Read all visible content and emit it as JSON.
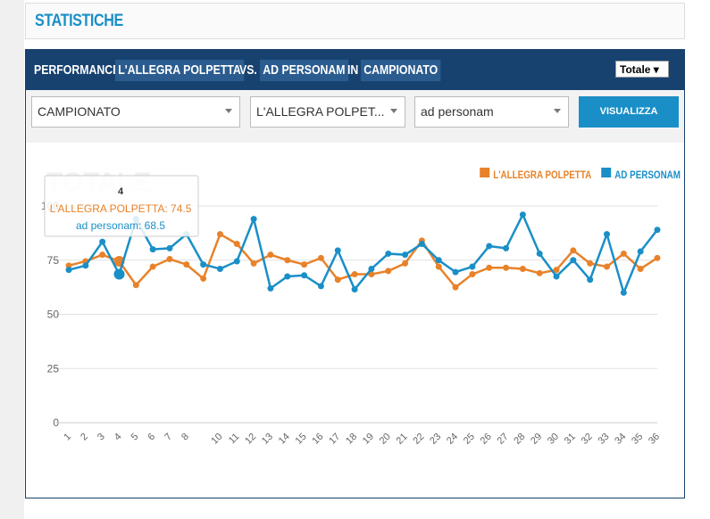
{
  "page": {
    "section_title": "STATISTICHE",
    "panel": {
      "title_parts": [
        "PERFORMANCE",
        "L'ALLEGRA POLPETTA",
        "VS.",
        "AD PERSONAM",
        "IN",
        "CAMPIONATO"
      ],
      "mode_select": "Totale"
    },
    "filters": {
      "competition": "CAMPIONATO",
      "team_a": "L'ALLEGRA POLPET...",
      "team_b": "ad personam",
      "button": "VISUALIZZA"
    }
  },
  "chart_data": {
    "type": "line",
    "watermark": "TOTALE",
    "categories": [
      "1",
      "2",
      "3",
      "4",
      "5",
      "6",
      "7",
      "8",
      null,
      "10",
      "11",
      "12",
      "13",
      "14",
      "15",
      "16",
      "17",
      "18",
      "19",
      "20",
      "21",
      "22",
      "23",
      "24",
      "25",
      "26",
      "27",
      "28",
      "29",
      "30",
      "31",
      "32",
      "33",
      "34",
      "35",
      "36"
    ],
    "series": [
      {
        "name": "L'ALLEGRA POLPETTA",
        "color": "#e8822a",
        "values": [
          72.5,
          74.5,
          77.5,
          74.5,
          63.5,
          72,
          75.5,
          73,
          66.5,
          87,
          82.5,
          73.5,
          77.5,
          75,
          73,
          76,
          66,
          68.5,
          68.5,
          70,
          73.5,
          84,
          72,
          62.5,
          68.5,
          71.5,
          71.5,
          71,
          69,
          70.5,
          79.5,
          73.5,
          72,
          78,
          71,
          76
        ]
      },
      {
        "name": "AD PERSONAM",
        "color": "#1a8fc7",
        "values": [
          70.5,
          72.5,
          83.5,
          68.5,
          94,
          80,
          80.5,
          87,
          73,
          71,
          74.5,
          94,
          62,
          67.5,
          68,
          63,
          79.5,
          61.5,
          71,
          78,
          77.5,
          82.5,
          75,
          69.5,
          72,
          81.5,
          80.5,
          96,
          78,
          67.5,
          75,
          66,
          87,
          60,
          79,
          89
        ]
      }
    ],
    "ylim": [
      0,
      100
    ],
    "yticks": [
      0,
      25,
      50,
      75,
      100
    ],
    "grid": true,
    "legend": "top-right",
    "tooltip": {
      "title": "4",
      "lines": [
        "L'ALLEGRA POLPETTA: 74.5",
        "ad personam: 68.5"
      ]
    }
  }
}
